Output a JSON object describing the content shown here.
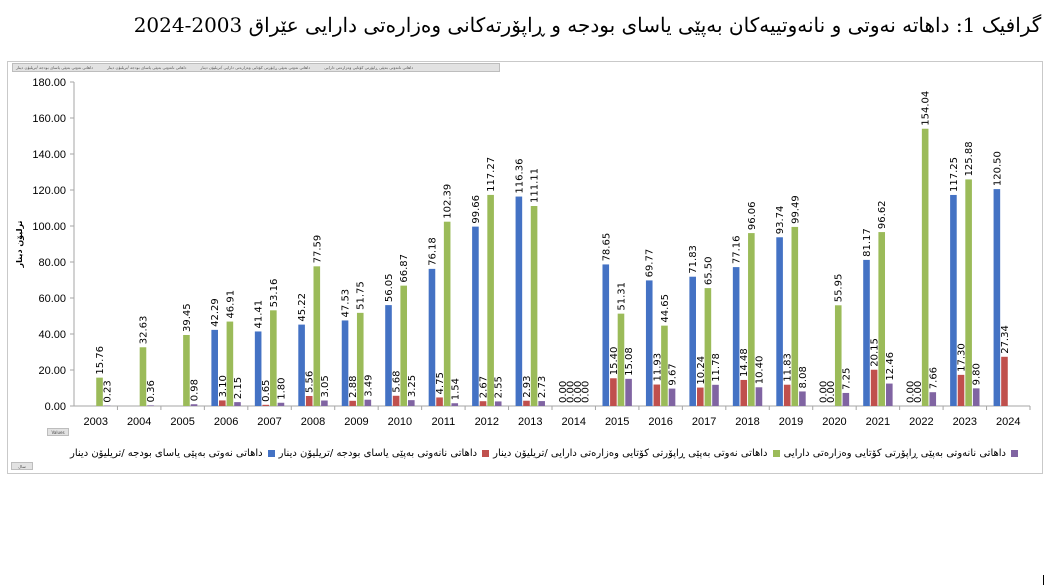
{
  "title": "گرافیک 1:  داهاتە نەوتی و نانەوتییەکان بەپێی یاسای بودجە و ڕاپۆرتەکانی وەزارەتی دارایی عێراق 2003-2024",
  "field_bar": [
    "داهاتی نەوتی بەپێی یاسای بودجە /تریلیۆن دینار",
    "داهاتی نانەوتی بەپێی یاسای بودجە /تریلیۆن دینار",
    "داهاتی نەوتی بەپێی ڕاپۆرتی کۆتایی وەزارەتی دارایی /تریلیۆن دینار",
    "داهاتی نانەوتی بەپێی ڕاپۆرتی کۆتایی وەزارەتی دارایی"
  ],
  "values_button": "Values",
  "filter_button": "سال",
  "colors": {
    "blue": "#4472c4",
    "red": "#c0504d",
    "green": "#9bbb59",
    "purple": "#8064a2"
  },
  "chart_data": {
    "type": "bar",
    "title": "",
    "xlabel": "",
    "ylabel": "ترلیۆن دینار",
    "ylim": [
      0,
      180
    ],
    "yticks": [
      "0.00",
      "20.00",
      "40.00",
      "60.00",
      "80.00",
      "100.00",
      "120.00",
      "140.00",
      "160.00",
      "180.00"
    ],
    "grid": false,
    "legend_position": "bottom",
    "categories": [
      "2003",
      "2004",
      "2005",
      "2006",
      "2007",
      "2008",
      "2009",
      "2010",
      "2011",
      "2012",
      "2013",
      "2014",
      "2015",
      "2016",
      "2017",
      "2018",
      "2019",
      "2020",
      "2021",
      "2022",
      "2023",
      "2024"
    ],
    "series": [
      {
        "name": "داهاتی نەوتی بەپێی یاسای بودجە /تریلیۆن دینار",
        "color": "#4472c4",
        "values": [
          null,
          null,
          null,
          42.29,
          41.41,
          45.22,
          47.53,
          56.05,
          76.18,
          99.66,
          116.36,
          0,
          78.65,
          69.77,
          71.83,
          77.16,
          93.74,
          0,
          81.17,
          0,
          117.25,
          120.5
        ],
        "labels": [
          "",
          "",
          "",
          "42.29",
          "41.41",
          "45.22",
          "47.53",
          "56.05",
          "76.18",
          "99.66",
          "116.36",
          "0.00",
          "78.65",
          "69.77",
          "71.83",
          "77.16",
          "93.74",
          "0.00",
          "81.17",
          "0.00",
          "117.25",
          "120.50"
        ]
      },
      {
        "name": "داهاتی نانەوتی بەپێی یاسای بودجە /تریلیۆن دینار",
        "color": "#c0504d",
        "values": [
          null,
          null,
          null,
          3.1,
          0.65,
          5.56,
          2.88,
          5.68,
          4.75,
          2.67,
          2.93,
          0,
          15.4,
          11.93,
          10.24,
          14.48,
          11.83,
          0,
          20.15,
          0,
          17.3,
          27.34
        ],
        "labels": [
          "",
          "",
          "",
          "3.10",
          "0.65",
          "5.56",
          "2.88",
          "5.68",
          "4.75",
          "2.67",
          "2.93",
          "0.00",
          "15.40",
          "11.93",
          "10.24",
          "14.48",
          "11.83",
          "0.00",
          "20.15",
          "0.00",
          "17.30",
          "27.34"
        ]
      },
      {
        "name": "داهاتی نەوتی بەپێی ڕاپۆرتی کۆتایی وەزارەتی دارایی /تریلیۆن دینار",
        "color": "#9bbb59",
        "values": [
          15.76,
          32.63,
          39.45,
          46.91,
          53.16,
          77.59,
          51.75,
          66.87,
          102.39,
          117.27,
          111.11,
          0,
          51.31,
          44.65,
          65.5,
          96.06,
          99.49,
          55.95,
          96.62,
          154.04,
          125.88,
          null
        ],
        "labels": [
          "15.76",
          "32.63",
          "39.45",
          "46.91",
          "53.16",
          "77.59",
          "51.75",
          "66.87",
          "102.39",
          "117.27",
          "111.11",
          "0.00",
          "51.31",
          "44.65",
          "65.50",
          "96.06",
          "99.49",
          "55.95",
          "96.62",
          "154.04",
          "125.88",
          ""
        ]
      },
      {
        "name": "داهاتی نانەوتی بەپێی ڕاپۆرتی کۆتایی وەزارەتی دارایی",
        "color": "#8064a2",
        "values": [
          0.23,
          0.36,
          0.98,
          2.15,
          1.8,
          3.05,
          3.49,
          3.25,
          1.54,
          2.55,
          2.73,
          0,
          15.08,
          9.67,
          11.78,
          10.4,
          8.08,
          7.25,
          12.46,
          7.66,
          9.8,
          null
        ],
        "labels": [
          "0.23",
          "0.36",
          "0.98",
          "2.15",
          "1.80",
          "3.05",
          "3.49",
          "3.25",
          "1.54",
          "2.55",
          "2.73",
          "0.00",
          "15.08",
          "9.67",
          "11.78",
          "10.40",
          "8.08",
          "7.25",
          "12.46",
          "7.66",
          "9.80",
          ""
        ]
      }
    ]
  }
}
